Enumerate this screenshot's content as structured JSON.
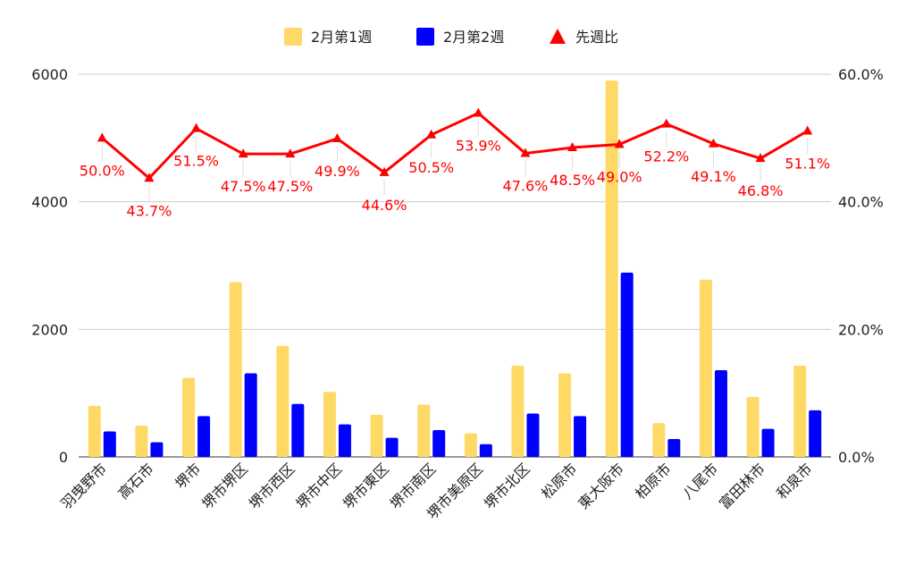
{
  "chart_data": {
    "type": "bar",
    "categories": [
      "羽曳野市",
      "高石市",
      "堺市",
      "堺市堺区",
      "堺市西区",
      "堺市中区",
      "堺市東区",
      "堺市南区",
      "堺市美原区",
      "堺市北区",
      "松原市",
      "東大阪市",
      "柏原市",
      "八尾市",
      "富田林市",
      "和泉市"
    ],
    "series": [
      {
        "name": "2月第1週",
        "kind": "bar",
        "axis": "left",
        "color": "#FFD966",
        "values": [
          800,
          490,
          1240,
          2740,
          1740,
          1020,
          660,
          820,
          370,
          1430,
          1310,
          5900,
          530,
          2780,
          940,
          1430
        ]
      },
      {
        "name": "2月第2週",
        "kind": "bar",
        "axis": "left",
        "color": "#0000FF",
        "values": [
          400,
          230,
          640,
          1310,
          830,
          510,
          300,
          420,
          200,
          680,
          640,
          2890,
          280,
          1360,
          440,
          730
        ]
      },
      {
        "name": "先週比",
        "kind": "line",
        "axis": "right",
        "color": "#FF0000",
        "marker": "triangle",
        "values": [
          50.0,
          43.7,
          51.5,
          47.5,
          47.5,
          49.9,
          44.6,
          50.5,
          53.9,
          47.6,
          48.5,
          49.0,
          52.2,
          49.1,
          46.8,
          51.1
        ],
        "labels": [
          "50.0%",
          "43.7%",
          "51.5%",
          "47.5%",
          "47.5%",
          "49.9%",
          "44.6%",
          "50.5%",
          "53.9%",
          "47.6%",
          "48.5%",
          "49.0%",
          "52.2%",
          "49.1%",
          "46.8%",
          "51.1%"
        ]
      }
    ],
    "y_left": {
      "ylim": [
        0,
        6000
      ],
      "ticks": [
        "0",
        "2000",
        "4000",
        "6000"
      ]
    },
    "y_right": {
      "ylim": [
        0,
        60
      ],
      "ticks": [
        "0.0%",
        "20.0%",
        "40.0%",
        "60.0%"
      ]
    },
    "grid": true,
    "legend_position": "top-center",
    "title": "",
    "xlabel": "",
    "ylabel": ""
  }
}
